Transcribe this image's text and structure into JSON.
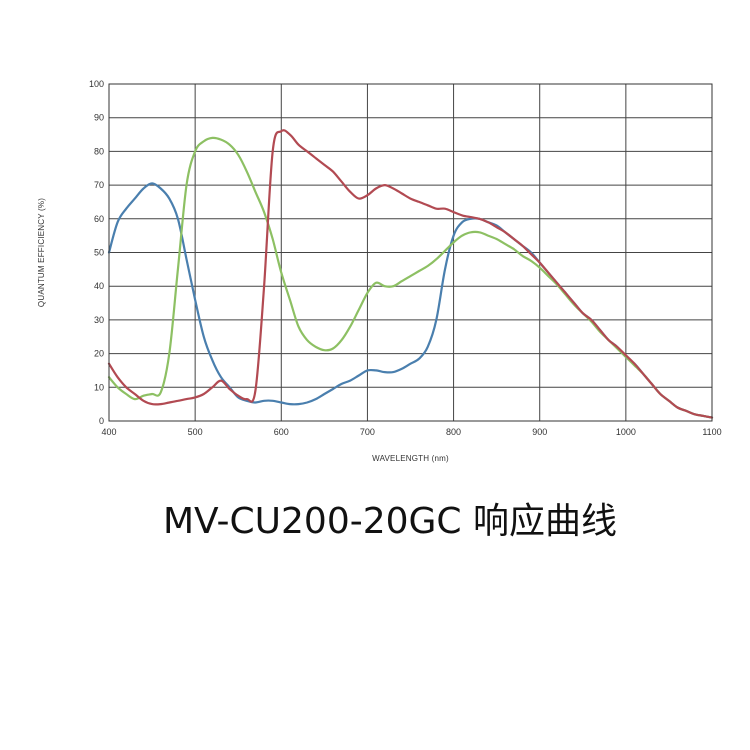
{
  "caption": "MV-CU200-20GC 响应曲线",
  "chart_data": {
    "type": "line",
    "xlabel": "WAVELENGTH (nm)",
    "ylabel": "QUANTUM EFFICIENCY (%)",
    "xlim": [
      400,
      1100
    ],
    "ylim": [
      0,
      100
    ],
    "xticks": [
      400,
      500,
      600,
      700,
      800,
      900,
      1000,
      1100
    ],
    "yticks": [
      0,
      10,
      20,
      30,
      40,
      50,
      60,
      70,
      80,
      90,
      100
    ],
    "grid": true,
    "series": [
      {
        "color": "#4a7fae",
        "points": [
          [
            400,
            50
          ],
          [
            410,
            59
          ],
          [
            420,
            63
          ],
          [
            430,
            66
          ],
          [
            440,
            69
          ],
          [
            450,
            70.5
          ],
          [
            460,
            69
          ],
          [
            470,
            66
          ],
          [
            480,
            60
          ],
          [
            490,
            48
          ],
          [
            500,
            36
          ],
          [
            510,
            25
          ],
          [
            520,
            18
          ],
          [
            530,
            13
          ],
          [
            540,
            10
          ],
          [
            550,
            7
          ],
          [
            560,
            6
          ],
          [
            570,
            5.5
          ],
          [
            580,
            6
          ],
          [
            590,
            6
          ],
          [
            600,
            5.5
          ],
          [
            610,
            5
          ],
          [
            620,
            5
          ],
          [
            630,
            5.5
          ],
          [
            640,
            6.5
          ],
          [
            650,
            8
          ],
          [
            660,
            9.5
          ],
          [
            670,
            11
          ],
          [
            680,
            12
          ],
          [
            690,
            13.5
          ],
          [
            700,
            15
          ],
          [
            710,
            15
          ],
          [
            720,
            14.5
          ],
          [
            730,
            14.5
          ],
          [
            740,
            15.5
          ],
          [
            750,
            17
          ],
          [
            760,
            18.5
          ],
          [
            770,
            22
          ],
          [
            780,
            30
          ],
          [
            790,
            45
          ],
          [
            800,
            55
          ],
          [
            810,
            59
          ],
          [
            820,
            60
          ],
          [
            830,
            60
          ],
          [
            840,
            59
          ],
          [
            850,
            58
          ],
          [
            860,
            56
          ],
          [
            870,
            54
          ],
          [
            880,
            52
          ],
          [
            890,
            50
          ],
          [
            900,
            47
          ],
          [
            910,
            44
          ],
          [
            920,
            41
          ],
          [
            930,
            38
          ],
          [
            940,
            35
          ],
          [
            950,
            32
          ],
          [
            960,
            30
          ],
          [
            970,
            27
          ],
          [
            980,
            24
          ],
          [
            990,
            22
          ],
          [
            1000,
            19
          ],
          [
            1010,
            17
          ],
          [
            1020,
            14
          ],
          [
            1030,
            11
          ],
          [
            1040,
            8
          ],
          [
            1050,
            6
          ],
          [
            1060,
            4
          ],
          [
            1070,
            3
          ],
          [
            1080,
            2
          ],
          [
            1090,
            1.5
          ],
          [
            1100,
            1
          ]
        ]
      },
      {
        "color": "#8dc063",
        "points": [
          [
            400,
            13
          ],
          [
            410,
            10
          ],
          [
            420,
            8
          ],
          [
            430,
            6.5
          ],
          [
            440,
            7.5
          ],
          [
            450,
            8
          ],
          [
            460,
            8.5
          ],
          [
            470,
            20
          ],
          [
            480,
            45
          ],
          [
            490,
            70
          ],
          [
            500,
            80
          ],
          [
            510,
            83
          ],
          [
            520,
            84
          ],
          [
            530,
            83.5
          ],
          [
            540,
            82
          ],
          [
            550,
            79
          ],
          [
            560,
            74
          ],
          [
            570,
            68
          ],
          [
            580,
            62
          ],
          [
            590,
            54
          ],
          [
            600,
            44
          ],
          [
            610,
            36
          ],
          [
            620,
            28
          ],
          [
            630,
            24
          ],
          [
            640,
            22
          ],
          [
            650,
            21
          ],
          [
            660,
            21.5
          ],
          [
            670,
            24
          ],
          [
            680,
            28
          ],
          [
            690,
            33
          ],
          [
            700,
            38
          ],
          [
            710,
            41
          ],
          [
            720,
            40
          ],
          [
            730,
            40
          ],
          [
            740,
            41.5
          ],
          [
            750,
            43
          ],
          [
            760,
            44.5
          ],
          [
            770,
            46
          ],
          [
            780,
            48
          ],
          [
            790,
            50.5
          ],
          [
            800,
            53
          ],
          [
            810,
            55
          ],
          [
            820,
            56
          ],
          [
            830,
            56
          ],
          [
            840,
            55
          ],
          [
            850,
            54
          ],
          [
            860,
            52.5
          ],
          [
            870,
            51
          ],
          [
            880,
            49
          ],
          [
            890,
            47.5
          ],
          [
            900,
            45.5
          ],
          [
            910,
            43
          ],
          [
            920,
            40.5
          ],
          [
            930,
            37.5
          ],
          [
            940,
            34.5
          ],
          [
            950,
            32
          ],
          [
            960,
            29.5
          ],
          [
            970,
            26.5
          ],
          [
            980,
            24
          ],
          [
            990,
            21.5
          ],
          [
            1000,
            19
          ],
          [
            1010,
            16.5
          ],
          [
            1020,
            14
          ],
          [
            1030,
            11
          ],
          [
            1040,
            8
          ],
          [
            1050,
            6
          ],
          [
            1060,
            4
          ],
          [
            1070,
            3
          ],
          [
            1080,
            2
          ],
          [
            1090,
            1.5
          ],
          [
            1100,
            1
          ]
        ]
      },
      {
        "color": "#b24a52",
        "points": [
          [
            400,
            17
          ],
          [
            410,
            13
          ],
          [
            420,
            10
          ],
          [
            430,
            8
          ],
          [
            440,
            6
          ],
          [
            450,
            5
          ],
          [
            460,
            5
          ],
          [
            470,
            5.5
          ],
          [
            480,
            6
          ],
          [
            490,
            6.5
          ],
          [
            500,
            7
          ],
          [
            510,
            8
          ],
          [
            520,
            10
          ],
          [
            530,
            12
          ],
          [
            540,
            9.5
          ],
          [
            550,
            7.5
          ],
          [
            560,
            6.5
          ],
          [
            570,
            9
          ],
          [
            580,
            40
          ],
          [
            590,
            80
          ],
          [
            600,
            86
          ],
          [
            610,
            85
          ],
          [
            620,
            82
          ],
          [
            630,
            80
          ],
          [
            640,
            78
          ],
          [
            650,
            76
          ],
          [
            660,
            74
          ],
          [
            670,
            71
          ],
          [
            680,
            68
          ],
          [
            690,
            66
          ],
          [
            700,
            67
          ],
          [
            710,
            69
          ],
          [
            720,
            70
          ],
          [
            730,
            69
          ],
          [
            740,
            67.5
          ],
          [
            750,
            66
          ],
          [
            760,
            65
          ],
          [
            770,
            64
          ],
          [
            780,
            63
          ],
          [
            790,
            63
          ],
          [
            800,
            62
          ],
          [
            810,
            61
          ],
          [
            820,
            60.5
          ],
          [
            830,
            60
          ],
          [
            840,
            59
          ],
          [
            850,
            57.5
          ],
          [
            860,
            56
          ],
          [
            870,
            54
          ],
          [
            880,
            52
          ],
          [
            890,
            49.5
          ],
          [
            900,
            47
          ],
          [
            910,
            44
          ],
          [
            920,
            41
          ],
          [
            930,
            38
          ],
          [
            940,
            35
          ],
          [
            950,
            32
          ],
          [
            960,
            30
          ],
          [
            970,
            27
          ],
          [
            980,
            24
          ],
          [
            990,
            22
          ],
          [
            1000,
            19.5
          ],
          [
            1010,
            17
          ],
          [
            1020,
            14
          ],
          [
            1030,
            11
          ],
          [
            1040,
            8
          ],
          [
            1050,
            6
          ],
          [
            1060,
            4
          ],
          [
            1070,
            3
          ],
          [
            1080,
            2
          ],
          [
            1090,
            1.5
          ],
          [
            1100,
            1
          ]
        ]
      }
    ]
  }
}
